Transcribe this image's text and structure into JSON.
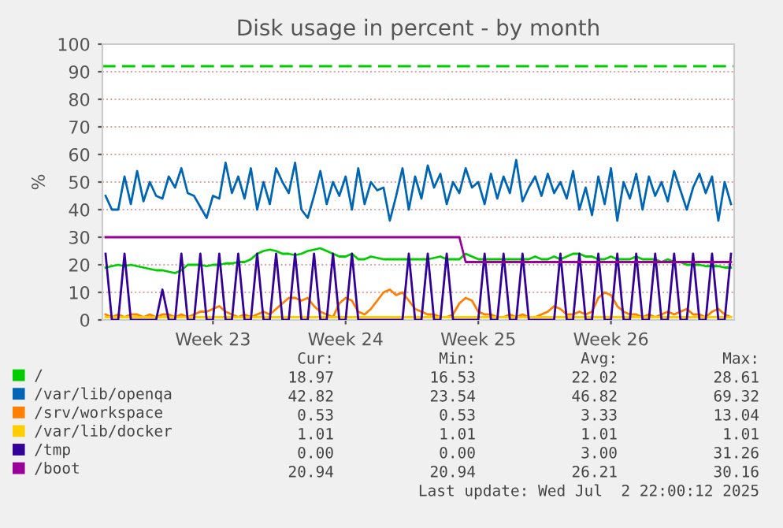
{
  "chart_data": {
    "type": "line",
    "title": "Disk usage in percent - by month",
    "ylabel": "%",
    "categories": [
      null,
      null,
      null,
      null,
      null,
      null,
      null,
      null,
      null,
      null,
      null,
      null,
      null,
      null,
      null,
      null,
      null,
      "Week 23",
      null,
      null,
      null,
      null,
      null,
      null,
      null,
      null,
      null,
      null,
      null,
      null,
      null,
      null,
      null,
      null,
      null,
      null,
      null,
      null,
      "Week 24",
      null,
      null,
      null,
      null,
      null,
      null,
      null,
      null,
      null,
      null,
      null,
      null,
      null,
      null,
      null,
      null,
      null,
      null,
      null,
      null,
      "Week 25",
      null,
      null,
      null,
      null,
      null,
      null,
      null,
      null,
      null,
      null,
      null,
      null,
      null,
      null,
      null,
      null,
      null,
      null,
      null,
      null,
      "Week 26",
      null,
      null,
      null,
      null,
      null,
      null,
      null,
      null,
      null,
      null,
      null,
      null,
      null,
      null,
      null,
      null,
      null,
      null,
      null
    ],
    "ylim": [
      0,
      100
    ],
    "yticks": [
      0,
      10,
      20,
      30,
      40,
      50,
      60,
      70,
      80,
      90,
      100
    ],
    "grid": "y",
    "legend": "bottom left",
    "line_style": "solid",
    "ref_lines": [
      {
        "axis": "y",
        "value": 92,
        "color": "#00cc00",
        "line_style": "dashed"
      }
    ],
    "series": [
      {
        "name": "/",
        "color": "#00cc00",
        "values": [
          19,
          19.5,
          20,
          19.5,
          20,
          19.5,
          19,
          18.5,
          18,
          18,
          17.5,
          17,
          18,
          20,
          20,
          20,
          19.5,
          20,
          20,
          20.5,
          20.5,
          21,
          21,
          22,
          24,
          25,
          25.5,
          25,
          24,
          24,
          23.5,
          24,
          25,
          25.5,
          26,
          25,
          24,
          23,
          23,
          24,
          22,
          22,
          23,
          22.5,
          22,
          22,
          22,
          22,
          22,
          22,
          22,
          22,
          22.5,
          23,
          22,
          22,
          22,
          24,
          23,
          22,
          22,
          22,
          22,
          22,
          22,
          22,
          22,
          22,
          23,
          22,
          22,
          23,
          22,
          23,
          24,
          24,
          23,
          23,
          22,
          22,
          23,
          22,
          22,
          22,
          23,
          22,
          22,
          22,
          21,
          22,
          21,
          21,
          20,
          20,
          20,
          19.5,
          19.5,
          19.5,
          19,
          19
        ]
      },
      {
        "name": "/var/lib/openqa",
        "color": "#0066b3",
        "values": [
          45,
          40,
          40,
          52,
          42,
          54,
          43,
          50,
          45,
          44,
          52,
          48,
          55,
          46,
          45,
          41,
          37,
          45,
          44,
          57,
          46,
          52,
          44,
          55,
          40,
          50,
          42,
          55,
          50,
          46,
          57,
          40,
          37,
          45,
          54,
          42,
          50,
          45,
          52,
          40,
          55,
          42,
          50,
          47,
          48,
          36,
          45,
          55,
          40,
          52,
          44,
          56,
          48,
          53,
          42,
          50,
          46,
          55,
          48,
          50,
          42,
          53,
          44,
          52,
          46,
          58,
          43,
          48,
          52,
          45,
          53,
          46,
          50,
          44,
          54,
          40,
          48,
          38,
          52,
          42,
          55,
          36,
          50,
          44,
          53,
          40,
          52,
          45,
          50,
          43,
          54,
          47,
          40,
          48,
          53,
          46,
          52,
          36,
          50,
          42
        ]
      },
      {
        "name": "/srv/workspace",
        "color": "#ff8000",
        "values": [
          2,
          1,
          2,
          1,
          2,
          2,
          1,
          2,
          1,
          2,
          2,
          1,
          2,
          1,
          2,
          3,
          3,
          4,
          5,
          3,
          2,
          1,
          2,
          1,
          2,
          3,
          2,
          4,
          6,
          8,
          8,
          7,
          8,
          5,
          3,
          2,
          1,
          6,
          8,
          7,
          3,
          2,
          4,
          7,
          10,
          11,
          9,
          10,
          7,
          4,
          3,
          2,
          2,
          1,
          1,
          2,
          6,
          8,
          7,
          3,
          2,
          2,
          1,
          1,
          2,
          1,
          2,
          1,
          1,
          2,
          3,
          5,
          4,
          2,
          2,
          3,
          2,
          3,
          8,
          10,
          9,
          5,
          3,
          2,
          2,
          1,
          2,
          1,
          2,
          3,
          2,
          3,
          4,
          2,
          2,
          1,
          3,
          4,
          2,
          1
        ]
      },
      {
        "name": "/var/lib/docker",
        "color": "#ffcc00",
        "values": [
          1,
          1,
          1,
          1,
          1,
          1,
          1,
          1,
          1,
          1,
          1,
          1,
          1,
          1,
          1,
          1,
          1,
          1,
          1,
          1,
          1,
          1,
          1,
          1,
          1,
          1,
          1,
          1,
          1,
          1,
          1,
          1,
          1,
          1,
          1,
          1,
          1,
          1,
          1,
          1,
          1,
          1,
          1,
          1,
          1,
          1,
          1,
          1,
          1,
          1,
          1,
          1,
          1,
          1,
          1,
          1,
          1,
          1,
          1,
          1,
          1,
          1,
          1,
          1,
          1,
          1,
          1,
          1,
          1,
          1,
          1,
          1,
          1,
          1,
          1,
          1,
          1,
          1,
          1,
          1,
          1,
          1,
          1,
          1,
          1,
          1,
          1,
          1,
          1,
          1,
          1,
          1,
          1,
          1,
          1,
          1,
          1,
          1,
          1,
          1
        ]
      },
      {
        "name": "/tmp",
        "color": "#330099",
        "values": [
          24,
          0,
          0,
          24,
          0,
          0,
          0,
          0,
          0,
          11,
          0,
          0,
          24,
          0,
          0,
          24,
          0,
          0,
          24,
          0,
          0,
          24,
          0,
          0,
          24,
          0,
          0,
          24,
          0,
          0,
          24,
          0,
          0,
          24,
          0,
          0,
          24,
          0,
          0,
          24,
          0,
          0,
          0,
          0,
          0,
          0,
          0,
          0,
          24,
          0,
          0,
          24,
          0,
          0,
          24,
          0,
          0,
          0,
          0,
          0,
          24,
          0,
          0,
          24,
          0,
          0,
          24,
          0,
          0,
          0,
          0,
          0,
          24,
          0,
          0,
          24,
          0,
          0,
          24,
          0,
          0,
          24,
          0,
          0,
          24,
          0,
          0,
          24,
          0,
          0,
          24,
          0,
          0,
          24,
          0,
          0,
          24,
          0,
          0,
          24
        ]
      },
      {
        "name": "/boot",
        "color": "#990099",
        "values": [
          30,
          30,
          30,
          30,
          30,
          30,
          30,
          30,
          30,
          30,
          30,
          30,
          30,
          30,
          30,
          30,
          30,
          30,
          30,
          30,
          30,
          30,
          30,
          30,
          30,
          30,
          30,
          30,
          30,
          30,
          30,
          30,
          30,
          30,
          30,
          30,
          30,
          30,
          30,
          30,
          30,
          30,
          30,
          30,
          30,
          30,
          30,
          30,
          30,
          30,
          30,
          30,
          30,
          30,
          30,
          30,
          30,
          21,
          21,
          21,
          21,
          21,
          21,
          21,
          21,
          21,
          21,
          21,
          21,
          21,
          21,
          21,
          21,
          21,
          21,
          21,
          21,
          21,
          21,
          21,
          21,
          21,
          21,
          21,
          21,
          21,
          21,
          21,
          21,
          21,
          21,
          21,
          21,
          21,
          21,
          21,
          21,
          21,
          21,
          21
        ]
      }
    ],
    "annotations": [
      "Cur:",
      "Min:",
      "Avg:",
      "Max:",
      "18.97",
      "16.53",
      "22.02",
      "28.61",
      "42.82",
      "23.54",
      "46.82",
      "69.32",
      "0.53",
      "0.53",
      "3.33",
      "13.04",
      "1.01",
      "1.01",
      "1.01",
      "1.01",
      "0.00",
      "0.00",
      "3.00",
      "31.26",
      "20.94",
      "20.94",
      "26.21",
      "30.16",
      "Last update: Wed Jul  2 22:00:12 2025"
    ]
  }
}
